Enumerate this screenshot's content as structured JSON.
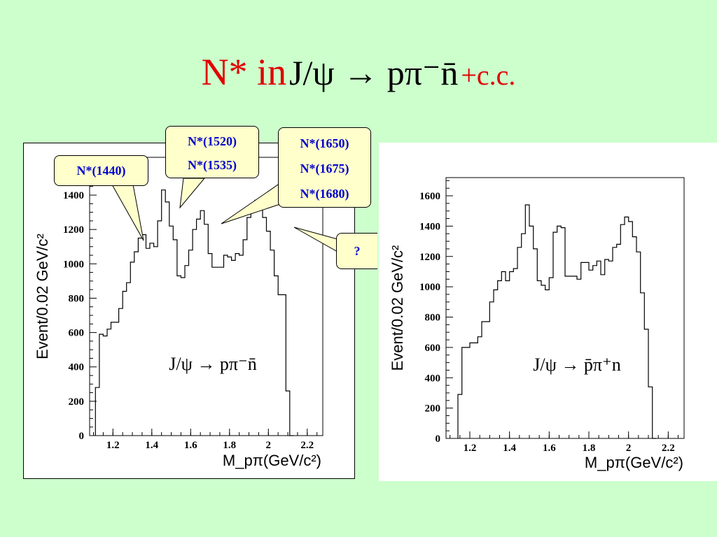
{
  "title": {
    "prefix": "N* in",
    "reaction": "J/ψ → pπ⁻n̄",
    "suffix": "+c.c."
  },
  "annotations": {
    "n1440": "N*(1440)",
    "n1520": "N*(1520)",
    "n1535": "N*(1535)",
    "n1650": "N*(1650)",
    "n1675": "N*(1675)",
    "n1680": "N*(1680)",
    "unknown": "?"
  },
  "chart_data": [
    {
      "type": "histogram",
      "reaction_label": "J/ψ → pπ⁻n̄",
      "xlabel": "M_pπ(GeV/c²)",
      "ylabel": "Event/0.02 GeV/c²",
      "xlim": [
        1.08,
        2.28
      ],
      "ylim": [
        0,
        1620
      ],
      "xticks": [
        "1.2",
        "1.4",
        "1.6",
        "1.8",
        "2",
        "2.2"
      ],
      "yticks": [
        "0",
        "200",
        "400",
        "600",
        "800",
        "1000",
        "1200",
        "1400"
      ],
      "bin_width": 0.02,
      "bin_start": 1.11,
      "values": [
        280,
        590,
        580,
        620,
        660,
        660,
        740,
        840,
        890,
        1010,
        1070,
        1150,
        1170,
        1090,
        1120,
        1100,
        1250,
        1430,
        1360,
        1220,
        1140,
        930,
        920,
        990,
        1080,
        1200,
        1260,
        1310,
        1230,
        1060,
        980,
        980,
        980,
        1050,
        1040,
        1020,
        1060,
        1050,
        1140,
        1270,
        1320,
        1370,
        1350,
        1270,
        1190,
        1080,
        930,
        820,
        820,
        260,
        0
      ]
    },
    {
      "type": "histogram",
      "reaction_label": "J/ψ → p̄π⁺n",
      "xlabel": "M_pπ(GeV/c²)",
      "ylabel": "Event/0.02 GeV/c²",
      "xlim": [
        1.08,
        2.28
      ],
      "ylim": [
        0,
        1720
      ],
      "xticks": [
        "1.2",
        "1.4",
        "1.6",
        "1.8",
        "2",
        "2.2"
      ],
      "yticks": [
        "0",
        "200",
        "400",
        "600",
        "800",
        "1000",
        "1200",
        "1400",
        "1600"
      ],
      "bin_width": 0.02,
      "bin_start": 1.14,
      "values": [
        290,
        600,
        600,
        630,
        630,
        670,
        770,
        770,
        900,
        980,
        1040,
        1100,
        1040,
        1100,
        1120,
        1260,
        1350,
        1540,
        1400,
        1250,
        1040,
        1010,
        980,
        1060,
        1360,
        1400,
        1390,
        1070,
        1070,
        1070,
        1050,
        1160,
        1160,
        1110,
        1140,
        1170,
        1080,
        1180,
        1170,
        1260,
        1280,
        1410,
        1460,
        1430,
        1330,
        1230,
        960,
        720,
        340,
        0
      ]
    }
  ]
}
